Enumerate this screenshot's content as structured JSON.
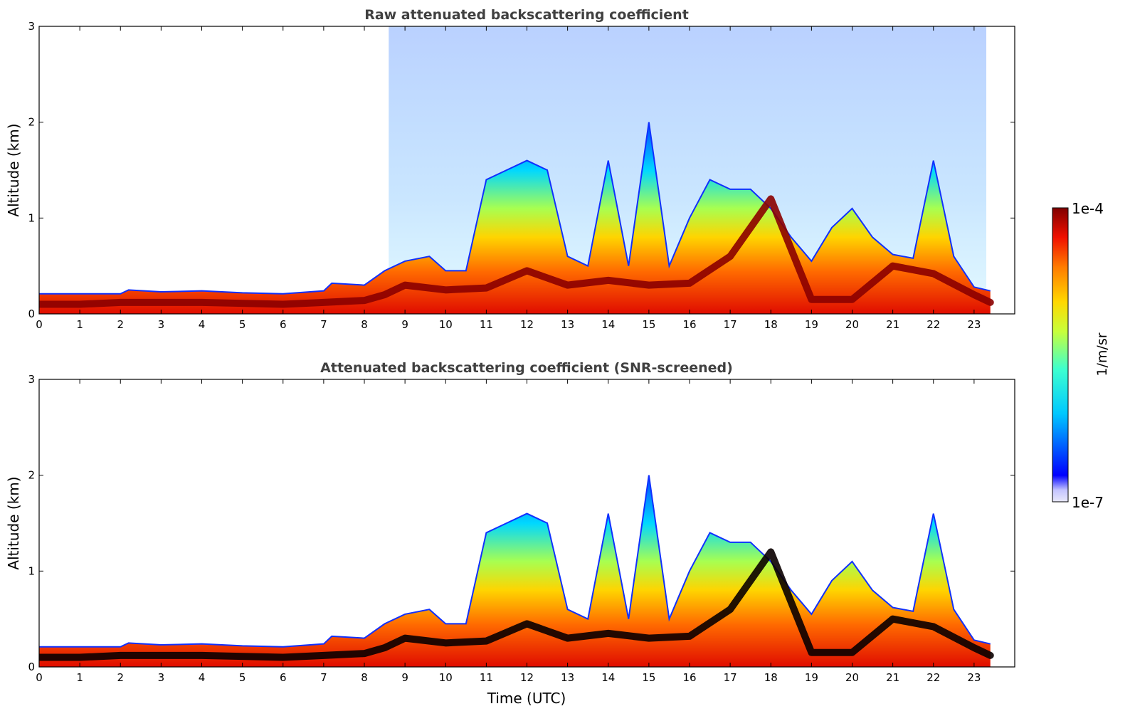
{
  "chart_data": [
    {
      "type": "heatmap",
      "title": "Raw attenuated backscattering coefficient",
      "ylabel": "Altitude (km)",
      "xlabel": "",
      "xlim": [
        0,
        24
      ],
      "ylim": [
        0,
        3
      ],
      "x_ticks": [
        "0",
        "1",
        "2",
        "3",
        "4",
        "5",
        "6",
        "7",
        "8",
        "9",
        "10",
        "11",
        "12",
        "13",
        "14",
        "15",
        "16",
        "17",
        "18",
        "19",
        "20",
        "21",
        "22",
        "23"
      ],
      "y_ticks": [
        "0",
        "1",
        "2",
        "3"
      ],
      "layer_top_km": {
        "x": [
          0,
          1,
          2,
          2.2,
          3,
          4,
          5,
          6,
          7,
          7.2,
          8,
          8.5,
          9,
          9.6,
          10,
          10.5,
          11,
          11.5,
          12,
          12.5,
          13,
          13.5,
          14,
          14.5,
          15,
          15.5,
          16,
          16.5,
          17,
          17.5,
          18,
          18.5,
          19,
          19.5,
          20,
          20.5,
          21,
          21.5,
          22,
          22.5,
          23,
          23.4
        ],
        "y": [
          0.21,
          0.21,
          0.21,
          0.25,
          0.23,
          0.24,
          0.22,
          0.21,
          0.24,
          0.32,
          0.3,
          0.45,
          0.55,
          0.6,
          0.45,
          0.45,
          1.4,
          1.5,
          1.6,
          1.5,
          0.6,
          0.5,
          1.6,
          0.5,
          2.0,
          0.5,
          1.0,
          1.4,
          1.3,
          1.3,
          1.1,
          0.8,
          0.55,
          0.9,
          1.1,
          0.8,
          0.62,
          0.58,
          1.6,
          0.6,
          0.28,
          0.24
        ]
      },
      "strong_layer_km": {
        "x": [
          0,
          1,
          2,
          3,
          4,
          5,
          6,
          7,
          8,
          8.5,
          9,
          10,
          11,
          12,
          13,
          14,
          15,
          16,
          17,
          18,
          19,
          20,
          21,
          22,
          23,
          23.4
        ],
        "y": [
          0.1,
          0.1,
          0.12,
          0.12,
          0.12,
          0.11,
          0.1,
          0.12,
          0.14,
          0.2,
          0.3,
          0.25,
          0.27,
          0.45,
          0.3,
          0.35,
          0.3,
          0.32,
          0.6,
          1.2,
          0.15,
          0.15,
          0.5,
          0.42,
          0.2,
          0.12
        ]
      },
      "noise_region_x": [
        8.6,
        23.3
      ]
    },
    {
      "type": "heatmap",
      "title": "Attenuated backscattering coefficient (SNR-screened)",
      "ylabel": "Altitude (km)",
      "xlabel": "Time (UTC)",
      "xlim": [
        0,
        24
      ],
      "ylim": [
        0,
        3
      ],
      "x_ticks": [
        "0",
        "1",
        "2",
        "3",
        "4",
        "5",
        "6",
        "7",
        "8",
        "9",
        "10",
        "11",
        "12",
        "13",
        "14",
        "15",
        "16",
        "17",
        "18",
        "19",
        "20",
        "21",
        "22",
        "23"
      ],
      "y_ticks": [
        "0",
        "1",
        "2",
        "3"
      ]
    }
  ],
  "colorbar": {
    "max_label": "1e-4",
    "min_label": "1e-7",
    "label": "1/m/sr",
    "scale": "log",
    "colormap": "jet"
  }
}
